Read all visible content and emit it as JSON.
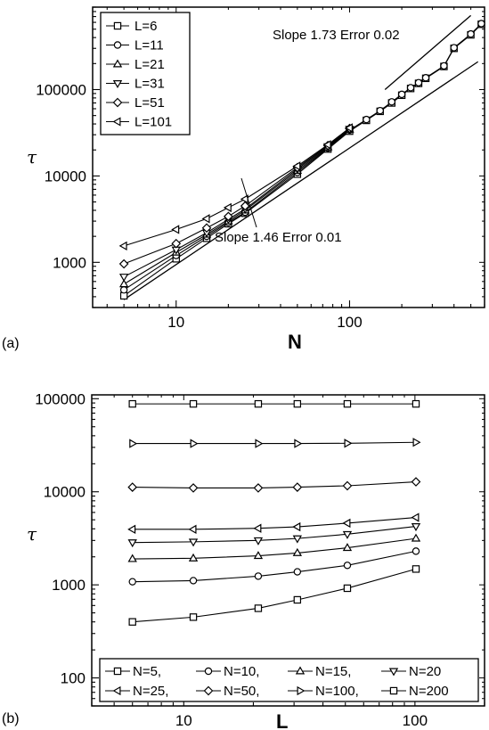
{
  "chart_data": [
    {
      "panel_label": "(a)",
      "type": "line",
      "xlabel": "N",
      "ylabel": "τ",
      "xscale": "log",
      "yscale": "log",
      "xlim": [
        3.3,
        600
      ],
      "ylim": [
        300,
        900000
      ],
      "x_ticks": [
        10,
        100
      ],
      "y_ticks": [
        1000,
        10000,
        100000
      ],
      "legend_position": "top-left",
      "series": [
        {
          "name": "L=6",
          "marker": "square",
          "x": [
            5,
            10,
            15,
            20,
            25,
            50,
            75,
            100,
            125,
            150,
            175,
            200,
            225,
            250,
            275,
            350,
            400,
            500,
            575
          ],
          "y": [
            410,
            1100,
            1900,
            2800,
            3700,
            10500,
            20500,
            33000,
            44000,
            56000,
            70000,
            86000,
            103000,
            118000,
            135000,
            185000,
            300000,
            430000,
            570000
          ]
        },
        {
          "name": "L=11",
          "marker": "circle",
          "x": [
            5,
            10,
            15,
            20,
            25,
            50,
            75,
            100,
            125,
            150,
            175,
            200,
            225,
            250,
            275,
            350,
            400,
            500,
            575
          ],
          "y": [
            480,
            1200,
            2000,
            2900,
            3800,
            11000,
            21000,
            34000,
            45000,
            57000,
            72000,
            88000,
            105000,
            120000,
            137000,
            188000,
            305000,
            440000,
            580000
          ]
        },
        {
          "name": "L=21",
          "marker": "triangle-up",
          "x": [
            5,
            10,
            15,
            20,
            25,
            50,
            75,
            100
          ],
          "y": [
            560,
            1300,
            2100,
            3000,
            4000,
            11500,
            21500,
            34500
          ]
        },
        {
          "name": "L=31",
          "marker": "triangle-down",
          "x": [
            5,
            10,
            15,
            20,
            25,
            50,
            75,
            100
          ],
          "y": [
            680,
            1400,
            2200,
            3150,
            4150,
            12000,
            22000,
            35000
          ]
        },
        {
          "name": "L=51",
          "marker": "diamond",
          "x": [
            5,
            10,
            15,
            20,
            25,
            50,
            75,
            100
          ],
          "y": [
            960,
            1650,
            2500,
            3400,
            4500,
            12500,
            22500,
            35500
          ]
        },
        {
          "name": "L=101",
          "marker": "triangle-left",
          "x": [
            5,
            10,
            15,
            20,
            25,
            50,
            75,
            100
          ],
          "y": [
            1550,
            2400,
            3200,
            4300,
            5400,
            13000,
            23000,
            36000
          ]
        }
      ],
      "fit_lines": [
        {
          "label": "Slope 1.73 Error 0.02",
          "x": [
            160,
            500
          ],
          "y": [
            100000,
            720000
          ]
        },
        {
          "label": "Slope 1.46 Error 0.01",
          "x": [
            5,
            550
          ],
          "y": [
            370,
            210000
          ]
        }
      ]
    },
    {
      "panel_label": "(b)",
      "type": "line",
      "xlabel": "L",
      "ylabel": "τ",
      "xscale": "log",
      "yscale": "log",
      "xlim": [
        4,
        200
      ],
      "ylim": [
        50,
        110000
      ],
      "x_ticks": [
        10,
        100
      ],
      "y_ticks": [
        100,
        1000,
        10000,
        100000
      ],
      "legend_position": "bottom",
      "x": [
        6,
        11,
        21,
        31,
        51,
        101
      ],
      "series": [
        {
          "name": "N=5,",
          "marker": "square",
          "values": [
            400,
            450,
            560,
            690,
            920,
            1480
          ]
        },
        {
          "name": "N=10,",
          "marker": "circle",
          "values": [
            1080,
            1110,
            1240,
            1380,
            1620,
            2300
          ]
        },
        {
          "name": "N=15,",
          "marker": "triangle-up",
          "values": [
            1900,
            1930,
            2050,
            2200,
            2500,
            3150
          ]
        },
        {
          "name": "N=20",
          "marker": "triangle-down",
          "values": [
            2850,
            2900,
            3000,
            3150,
            3500,
            4250
          ]
        },
        {
          "name": "N=25,",
          "marker": "triangle-left",
          "values": [
            3950,
            3950,
            4050,
            4200,
            4600,
            5300
          ]
        },
        {
          "name": "N=50,",
          "marker": "diamond",
          "values": [
            11200,
            11000,
            11000,
            11200,
            11600,
            12800
          ]
        },
        {
          "name": "N=100,",
          "marker": "triangle-right",
          "values": [
            33000,
            33000,
            33000,
            33000,
            33200,
            34000
          ]
        },
        {
          "name": "N=200",
          "marker": "square",
          "values": [
            88000,
            88000,
            88000,
            88000,
            88000,
            88000
          ]
        }
      ]
    }
  ]
}
